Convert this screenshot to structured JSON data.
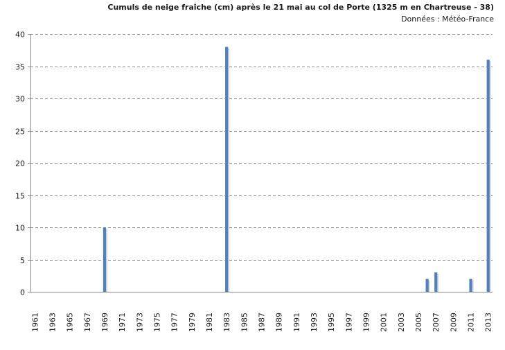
{
  "chart_data": {
    "type": "bar",
    "title": "Cumuls de neige fraîche (cm) après le 21 mai au col de Porte (1325 m en Chartreuse - 38)",
    "subtitle": "Données : Météo-France",
    "xlabel": "",
    "ylabel": "",
    "ylim": [
      0,
      40
    ],
    "yticks": [
      0,
      5,
      10,
      15,
      20,
      25,
      30,
      35,
      40
    ],
    "categories": [
      1961,
      1962,
      1963,
      1964,
      1965,
      1966,
      1967,
      1968,
      1969,
      1970,
      1971,
      1972,
      1973,
      1974,
      1975,
      1976,
      1977,
      1978,
      1979,
      1980,
      1981,
      1982,
      1983,
      1984,
      1985,
      1986,
      1987,
      1988,
      1989,
      1990,
      1991,
      1992,
      1993,
      1994,
      1995,
      1996,
      1997,
      1998,
      1999,
      2000,
      2001,
      2002,
      2003,
      2004,
      2005,
      2006,
      2007,
      2008,
      2009,
      2010,
      2011,
      2012,
      2013
    ],
    "xtick_labels": [
      "1961",
      "1963",
      "1965",
      "1967",
      "1969",
      "1971",
      "1973",
      "1975",
      "1977",
      "1979",
      "1981",
      "1983",
      "1985",
      "1987",
      "1989",
      "1991",
      "1993",
      "1995",
      "1997",
      "1999",
      "2001",
      "2003",
      "2005",
      "2007",
      "2009",
      "2011",
      "2013"
    ],
    "values": [
      0,
      0,
      0,
      0,
      0,
      0,
      0,
      0,
      10,
      0,
      0,
      0,
      0,
      0,
      0,
      0,
      0,
      0,
      0,
      0,
      0,
      0,
      38,
      0,
      0,
      0,
      0,
      0,
      0,
      0,
      0,
      0,
      0,
      0,
      0,
      0,
      0,
      0,
      0,
      0,
      0,
      0,
      0,
      0,
      0,
      2,
      3,
      0,
      0,
      0,
      2,
      0,
      36
    ],
    "grid": true,
    "legend": "none",
    "bar_color": "#4F81BD",
    "bar_shadow_color": "#c9c9c9",
    "grid_color": "#8c8c8c",
    "axis_color": "#868686"
  }
}
